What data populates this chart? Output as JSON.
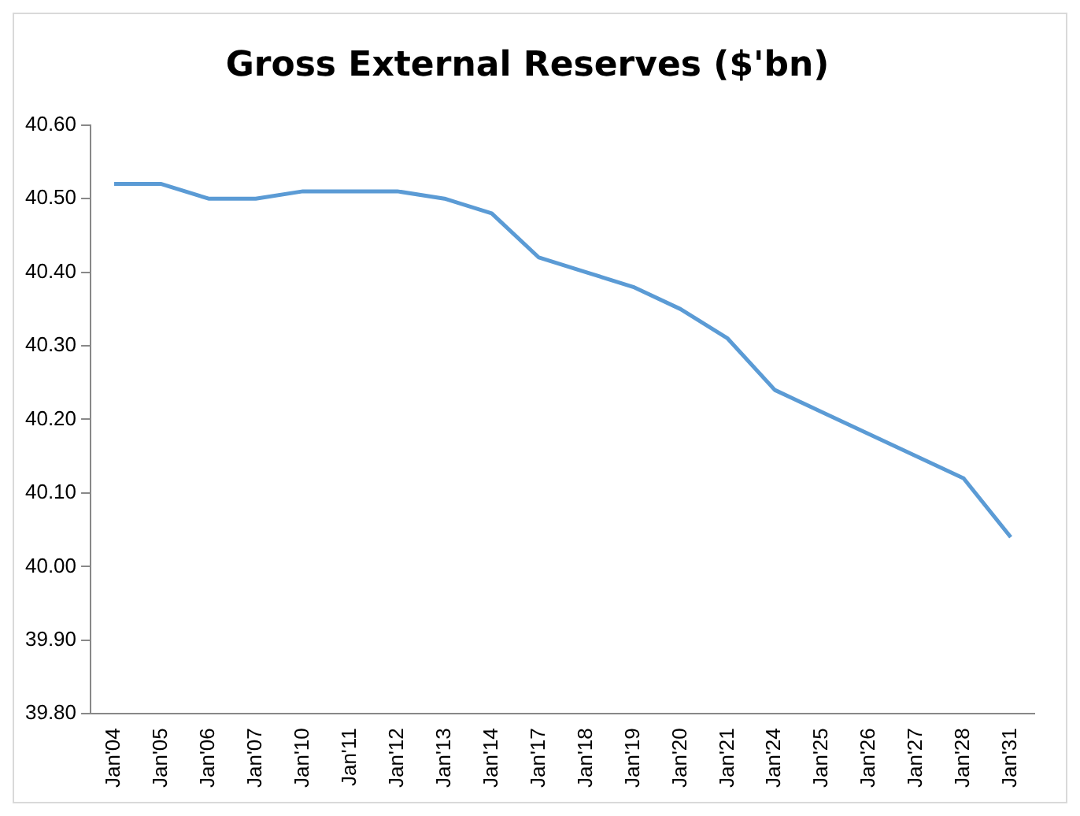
{
  "chart_data": {
    "type": "line",
    "title": "Gross External Reserves ($'bn)",
    "categories": [
      "Jan'04",
      "Jan'05",
      "Jan'06",
      "Jan'07",
      "Jan'10",
      "Jan'11",
      "Jan'12",
      "Jan'13",
      "Jan'14",
      "Jan'17",
      "Jan'18",
      "Jan'19",
      "Jan'20",
      "Jan'21",
      "Jan'24",
      "Jan'25",
      "Jan'26",
      "Jan'27",
      "Jan'28",
      "Jan'31"
    ],
    "series": [
      {
        "color": "#5b9bd5",
        "values": [
          40.52,
          40.52,
          40.5,
          40.5,
          40.51,
          40.51,
          40.51,
          40.5,
          40.48,
          40.42,
          40.4,
          40.38,
          40.35,
          40.31,
          40.24,
          40.21,
          40.18,
          40.15,
          40.12,
          40.04
        ]
      }
    ],
    "ylim": [
      39.8,
      40.6
    ],
    "yticks": [
      {
        "value": 39.8,
        "label": "39.80"
      },
      {
        "value": 39.9,
        "label": "39.90"
      },
      {
        "value": 40.0,
        "label": "40.00"
      },
      {
        "value": 40.1,
        "label": "40.10"
      },
      {
        "value": 40.2,
        "label": "40.20"
      },
      {
        "value": 40.3,
        "label": "40.30"
      },
      {
        "value": 40.4,
        "label": "40.40"
      },
      {
        "value": 40.5,
        "label": "40.50"
      },
      {
        "value": 40.6,
        "label": "40.60"
      }
    ],
    "grid": false,
    "legend": false,
    "marker": "none",
    "line_style": "solid"
  }
}
